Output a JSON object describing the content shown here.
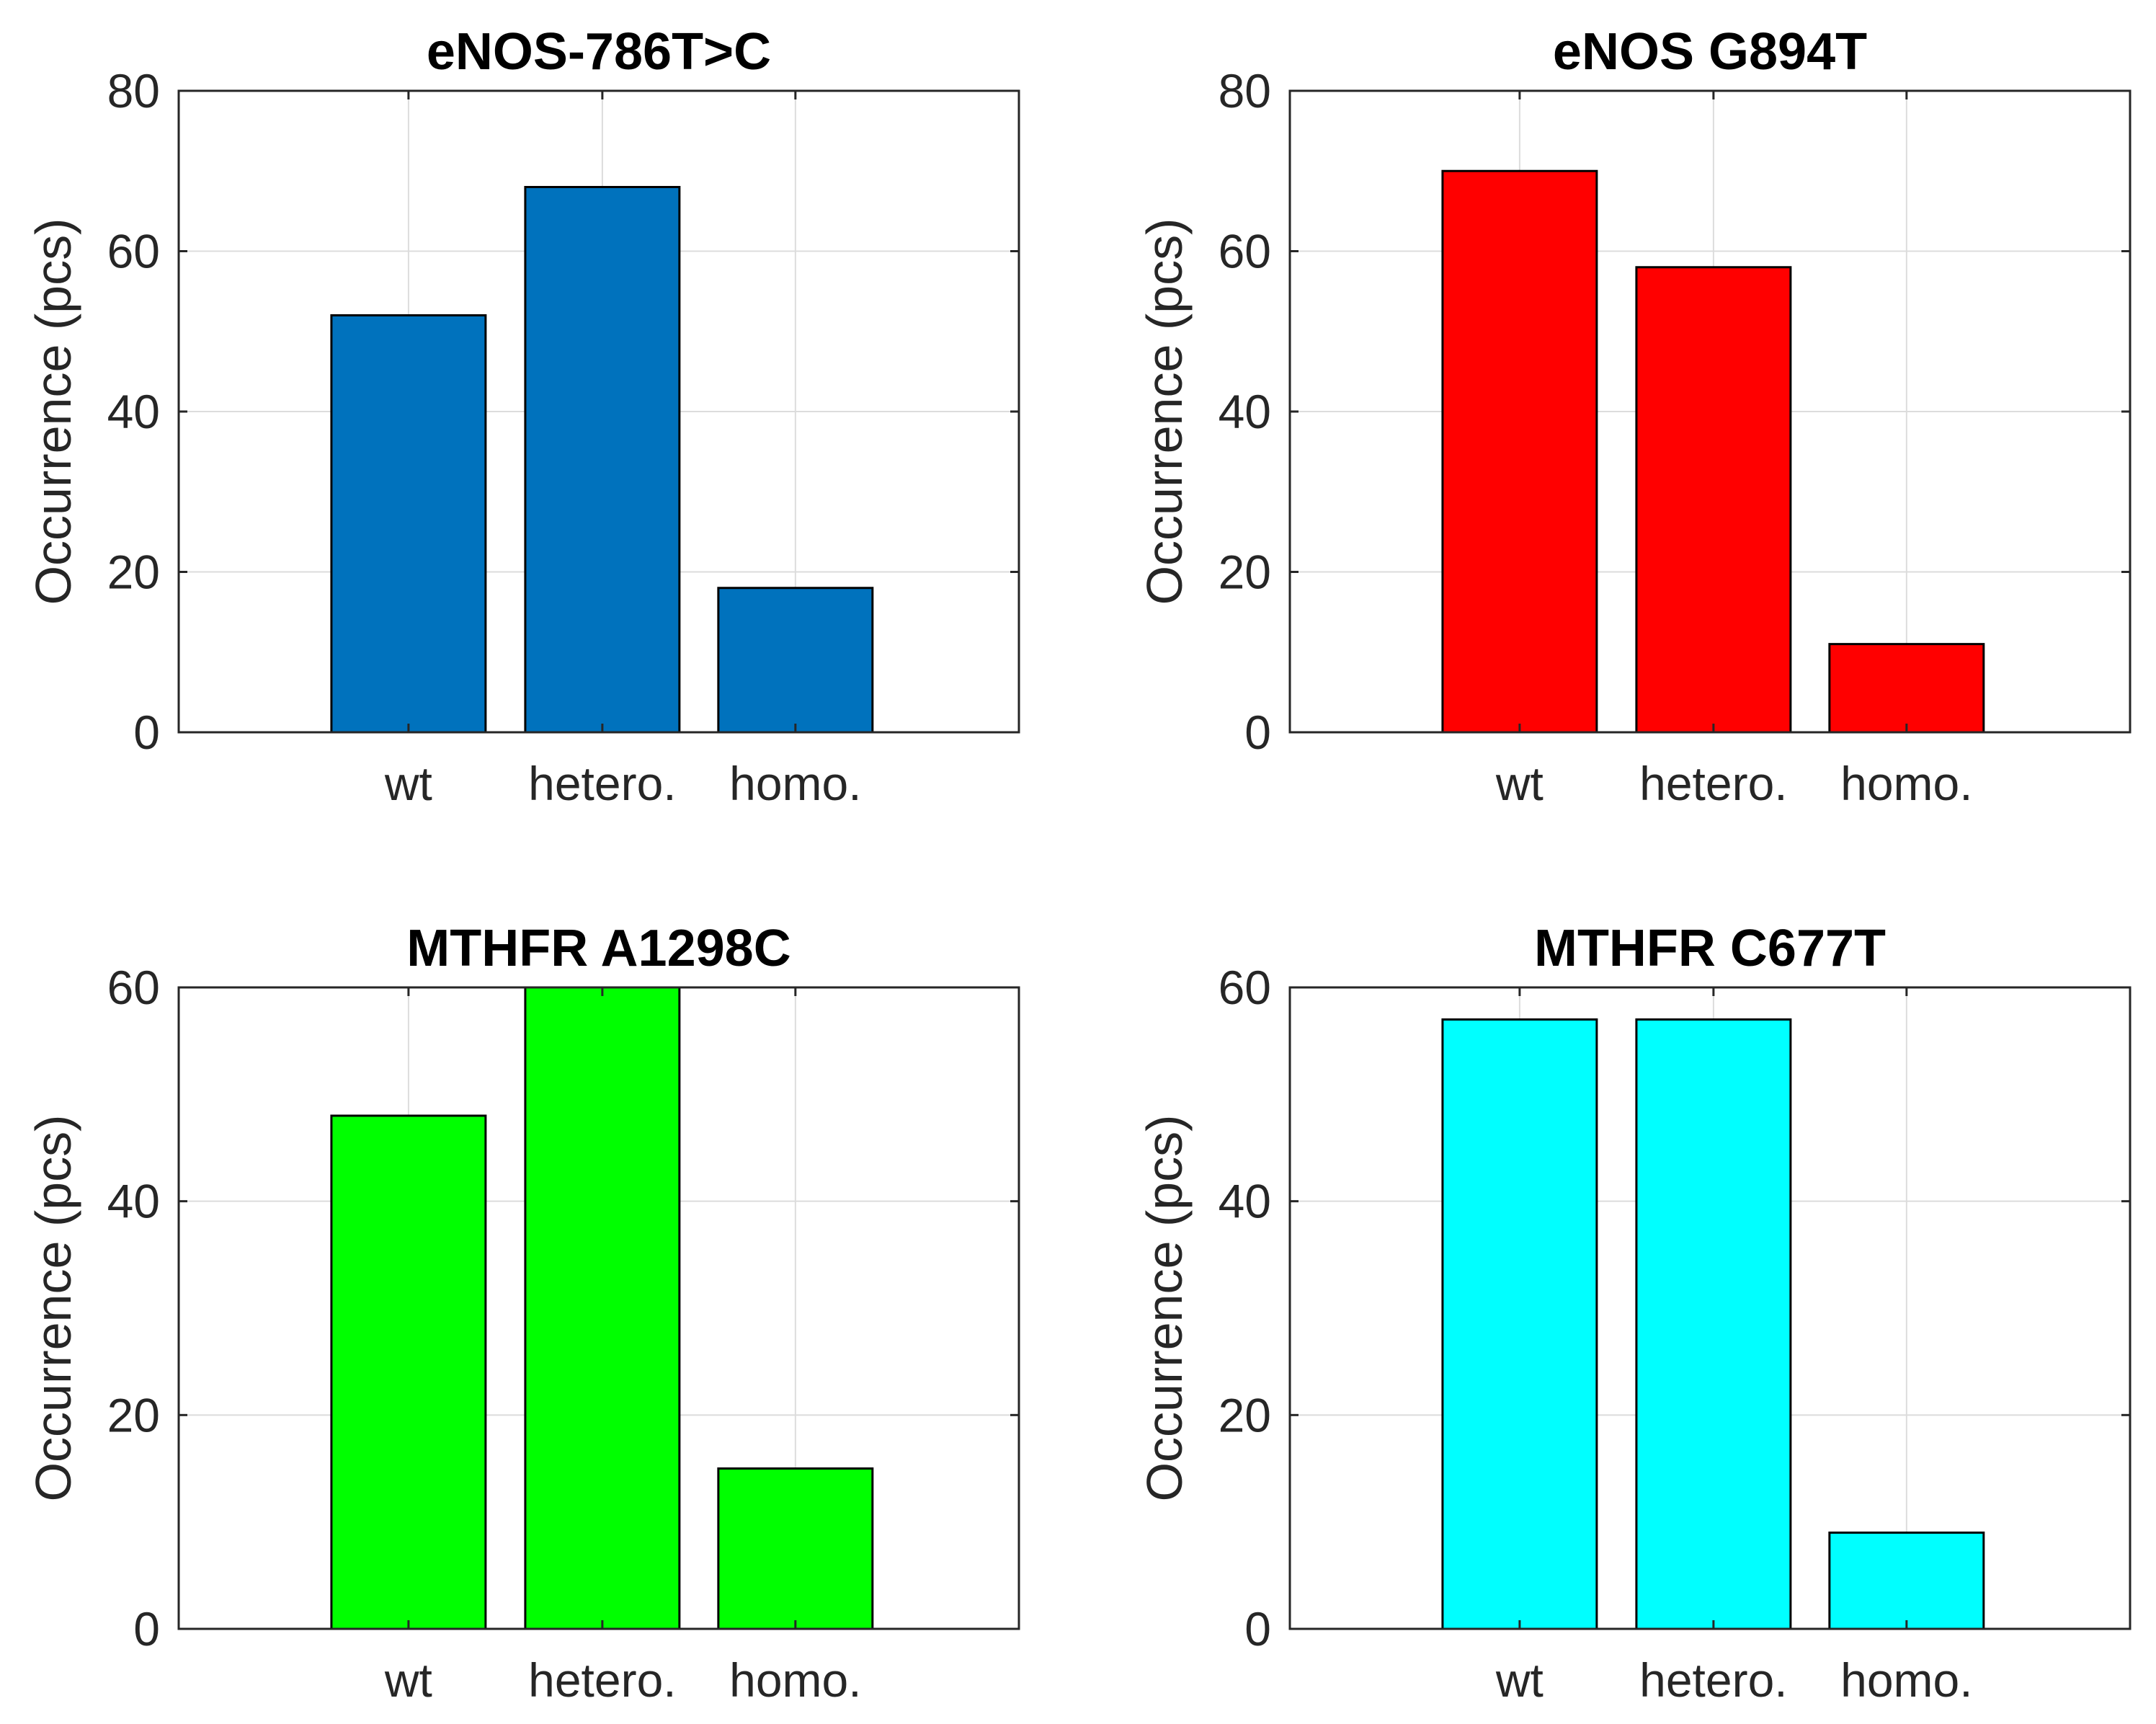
{
  "chart_data": [
    {
      "type": "bar",
      "title": "eNOS-786T>C",
      "categories": [
        "wt",
        "hetero.",
        "homo."
      ],
      "values": [
        52,
        68,
        18
      ],
      "color": "#0072BD",
      "xlabel": "",
      "ylabel": "Occurrence (pcs)",
      "ylim": [
        0,
        80
      ],
      "yticks": [
        "0",
        "20",
        "40",
        "60",
        "80"
      ],
      "grid": true
    },
    {
      "type": "bar",
      "title": "eNOS G894T",
      "categories": [
        "wt",
        "hetero.",
        "homo."
      ],
      "values": [
        70,
        58,
        11
      ],
      "color": "#FF0000",
      "xlabel": "",
      "ylabel": "Occurrence (pcs)",
      "ylim": [
        0,
        80
      ],
      "yticks": [
        "0",
        "20",
        "40",
        "60",
        "80"
      ],
      "grid": true
    },
    {
      "type": "bar",
      "title": "MTHFR A1298C",
      "categories": [
        "wt",
        "hetero.",
        "homo."
      ],
      "values": [
        48,
        60,
        15
      ],
      "color": "#00FF00",
      "xlabel": "",
      "ylabel": "Occurrence (pcs)",
      "ylim": [
        0,
        60
      ],
      "yticks": [
        "0",
        "20",
        "40",
        "60"
      ],
      "grid": true
    },
    {
      "type": "bar",
      "title": "MTHFR C677T",
      "categories": [
        "wt",
        "hetero.",
        "homo."
      ],
      "values": [
        57,
        57,
        9
      ],
      "color": "#00FFFF",
      "xlabel": "",
      "ylabel": "Occurrence (pcs)",
      "ylim": [
        0,
        60
      ],
      "yticks": [
        "0",
        "20",
        "40",
        "60"
      ],
      "grid": true
    }
  ]
}
